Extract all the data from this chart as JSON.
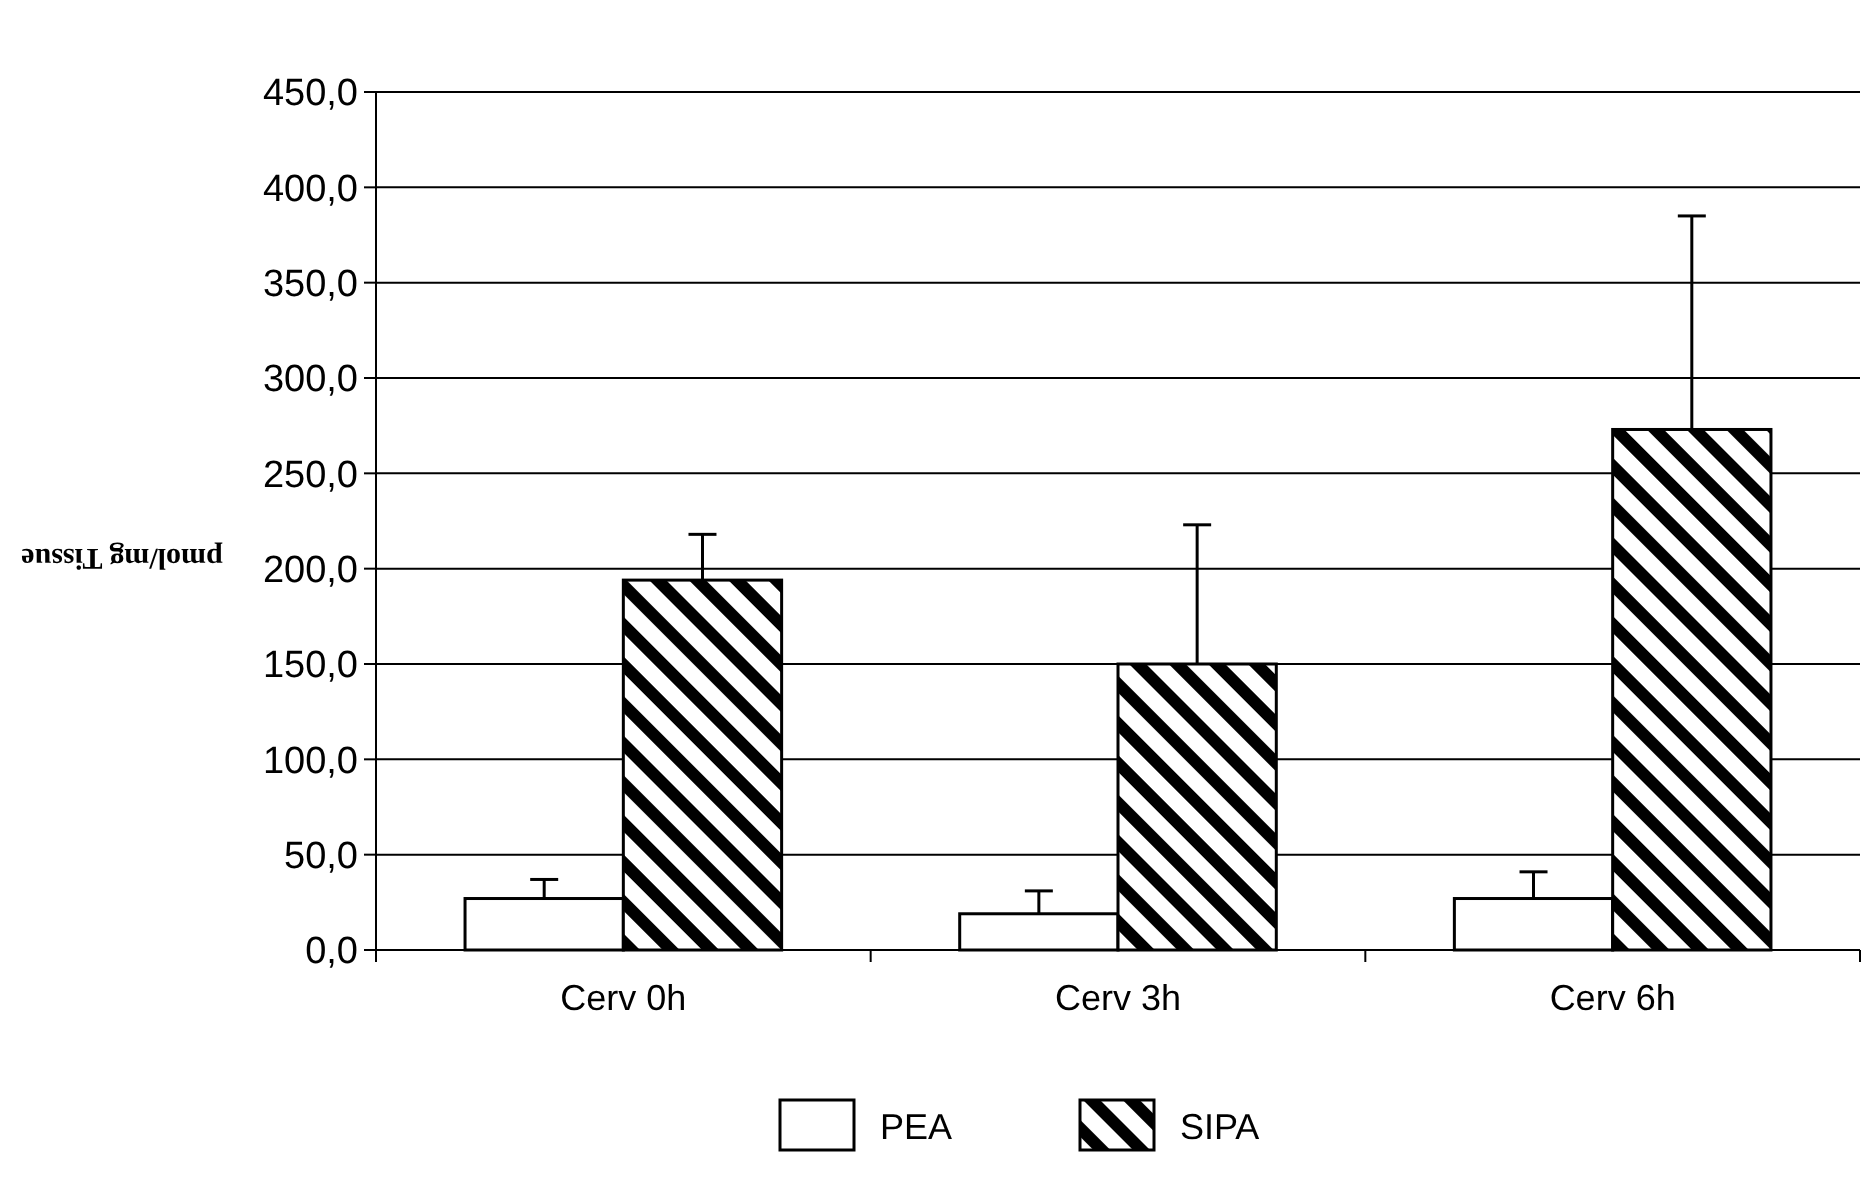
{
  "chart_data": {
    "type": "bar",
    "ylabel": "pmol/mg Tissue",
    "categories": [
      "Cerv 0h",
      "Cerv 3h",
      "Cerv 6h"
    ],
    "series": [
      {
        "name": "PEA",
        "color": "#ffffff",
        "values": [
          27,
          19,
          27
        ],
        "errors": [
          [
            27,
            37
          ],
          [
            19,
            31
          ],
          [
            27,
            41
          ]
        ]
      },
      {
        "name": "SIPA",
        "color": "#000000",
        "values": [
          194,
          150,
          273
        ],
        "errors": [
          [
            194,
            218
          ],
          [
            150,
            223
          ],
          [
            273,
            385
          ]
        ]
      }
    ],
    "ylim": [
      0,
      450
    ],
    "yticks": [
      {
        "value": 0,
        "label": "0,0"
      },
      {
        "value": 50,
        "label": "50,0"
      },
      {
        "value": 100,
        "label": "100,0"
      },
      {
        "value": 150,
        "label": "150,0"
      },
      {
        "value": 200,
        "label": "200,0"
      },
      {
        "value": 250,
        "label": "250,0"
      },
      {
        "value": 300,
        "label": "300,0"
      },
      {
        "value": 350,
        "label": "350,0"
      },
      {
        "value": 400,
        "label": "400,0"
      },
      {
        "value": 450,
        "label": "450,0"
      }
    ],
    "grid": "y",
    "legend": "bottom"
  }
}
